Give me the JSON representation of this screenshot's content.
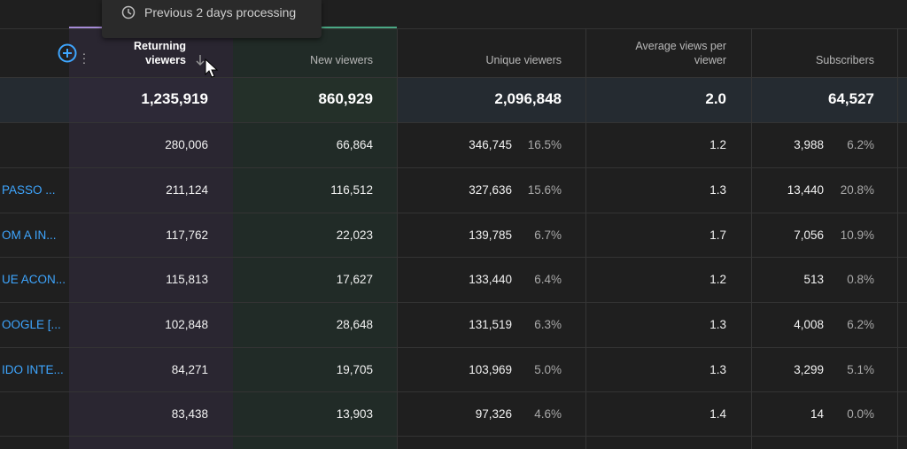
{
  "tooltip": {
    "text": "Previous 2 days processing",
    "icon": "clock-icon"
  },
  "headers": {
    "returning": [
      "Returning",
      "viewers"
    ],
    "new": "New viewers",
    "unique": "Unique viewers",
    "avg": [
      "Average views per",
      "viewer"
    ],
    "subs": "Subscribers"
  },
  "totals": {
    "returning": "1,235,919",
    "new": "860,929",
    "unique": "2,096,848",
    "avg": "2.0",
    "subs": "64,527"
  },
  "rows": [
    {
      "title": "",
      "returning": "280,006",
      "new": "66,864",
      "unique": "346,745",
      "unique_pct": "16.5%",
      "avg": "1.2",
      "subs": "3,988",
      "subs_pct": "6.2%"
    },
    {
      "title": "PASSO ...",
      "returning": "211,124",
      "new": "116,512",
      "unique": "327,636",
      "unique_pct": "15.6%",
      "avg": "1.3",
      "subs": "13,440",
      "subs_pct": "20.8%"
    },
    {
      "title": "OM A IN...",
      "returning": "117,762",
      "new": "22,023",
      "unique": "139,785",
      "unique_pct": "6.7%",
      "avg": "1.7",
      "subs": "7,056",
      "subs_pct": "10.9%"
    },
    {
      "title": "UE ACON...",
      "returning": "115,813",
      "new": "17,627",
      "unique": "133,440",
      "unique_pct": "6.4%",
      "avg": "1.2",
      "subs": "513",
      "subs_pct": "0.8%"
    },
    {
      "title": "OOGLE [...",
      "returning": "102,848",
      "new": "28,648",
      "unique": "131,519",
      "unique_pct": "6.3%",
      "avg": "1.3",
      "subs": "4,008",
      "subs_pct": "6.2%"
    },
    {
      "title": "IDO INTE...",
      "returning": "84,271",
      "new": "19,705",
      "unique": "103,969",
      "unique_pct": "5.0%",
      "avg": "1.3",
      "subs": "3,299",
      "subs_pct": "5.1%"
    },
    {
      "title": "",
      "returning": "83,438",
      "new": "13,903",
      "unique": "97,326",
      "unique_pct": "4.6%",
      "avg": "1.4",
      "subs": "14",
      "subs_pct": "0.0%"
    }
  ],
  "colors": {
    "link": "#3ea6ff",
    "returning_accent": "#a58bd6",
    "new_accent": "#4aa784"
  }
}
